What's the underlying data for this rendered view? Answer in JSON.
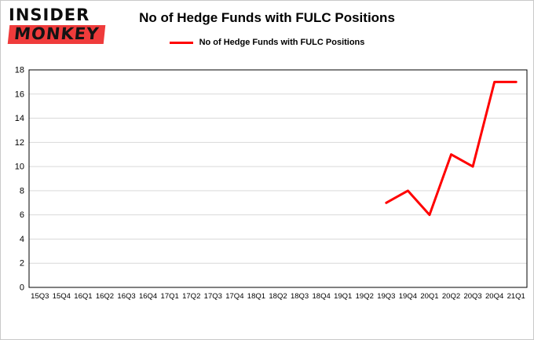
{
  "logo": {
    "line1": "INSIDER",
    "line2": "MONKEY"
  },
  "header": {
    "title": "No of Hedge Funds with FULC Positions"
  },
  "legend": {
    "label": "No of Hedge Funds with FULC Positions"
  },
  "colors": {
    "line": "#ff0000",
    "grid": "#d9d9d9",
    "plot_border": "#000000",
    "axis_text": "#000000",
    "logo_red": "#ef3b3b"
  },
  "chart_data": {
    "type": "line",
    "title": "No of Hedge Funds with FULC Positions",
    "xlabel": "",
    "ylabel": "",
    "ylim": [
      0,
      18
    ],
    "ytick_step": 2,
    "grid": true,
    "legend_position": "top",
    "categories": [
      "15Q3",
      "15Q4",
      "16Q1",
      "16Q2",
      "16Q3",
      "16Q4",
      "17Q1",
      "17Q2",
      "17Q3",
      "17Q4",
      "18Q1",
      "18Q2",
      "18Q3",
      "18Q4",
      "19Q1",
      "19Q2",
      "19Q3",
      "19Q4",
      "20Q1",
      "20Q2",
      "20Q3",
      "20Q4",
      "21Q1"
    ],
    "series": [
      {
        "name": "No of Hedge Funds with FULC Positions",
        "color": "#ff0000",
        "points": [
          {
            "x": "19Q3",
            "y": 7
          },
          {
            "x": "19Q4",
            "y": 8
          },
          {
            "x": "20Q1",
            "y": 6
          },
          {
            "x": "20Q2",
            "y": 11
          },
          {
            "x": "20Q3",
            "y": 10
          },
          {
            "x": "20Q4",
            "y": 17
          },
          {
            "x": "21Q1",
            "y": 17
          }
        ]
      }
    ]
  }
}
